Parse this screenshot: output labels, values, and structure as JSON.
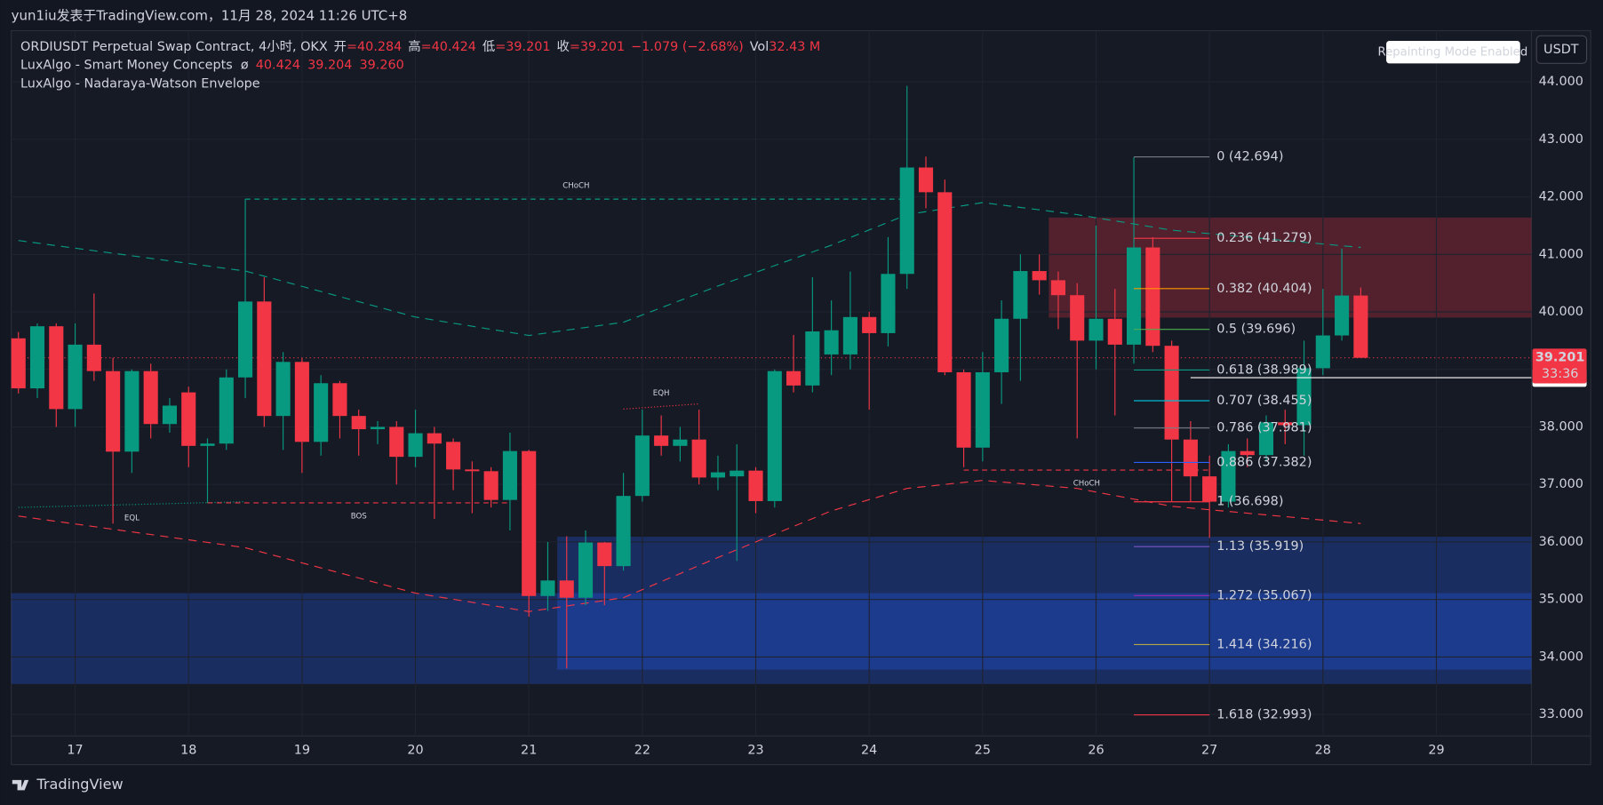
{
  "chart_data": {
    "type": "candlestick",
    "title": "yun1iu发表于TradingView.com，11月 28, 2024 11:26 UTC+8",
    "legend": {
      "symbol": "ORDIUSDT Perpetual Swap Contract, 4小时, OKX",
      "ohlc": [
        {
          "label": "开",
          "value": "=40.284"
        },
        {
          "label": "高",
          "value": "=40.424"
        },
        {
          "label": "低",
          "value": "=39.201"
        },
        {
          "label": "收",
          "value": "=39.201"
        }
      ],
      "change": "−1.079 (−2.68%)",
      "vol_label": "Vol",
      "vol_value": "32.43 M",
      "indicators": [
        {
          "name": "LuxAlgo - Smart Money Concepts",
          "symbol": "ø",
          "values": [
            "40.424",
            "39.204",
            "39.260"
          ]
        },
        {
          "name": "LuxAlgo - Nadaraya-Watson Envelope"
        }
      ]
    },
    "badge": "Repainting Mode Enabled",
    "currency": "USDT",
    "brand": "TradingView",
    "up_color": "#089981",
    "down_color": "#f23645",
    "categories": [
      null,
      null,
      null,
      "17",
      null,
      null,
      null,
      null,
      null,
      "18",
      null,
      null,
      null,
      null,
      null,
      "19",
      null,
      null,
      null,
      null,
      null,
      "20",
      null,
      null,
      null,
      null,
      null,
      "21",
      null,
      null,
      null,
      null,
      null,
      "22",
      null,
      null,
      null,
      null,
      null,
      "23",
      null,
      null,
      null,
      null,
      null,
      "24",
      null,
      null,
      null,
      null,
      null,
      "25",
      null,
      null,
      null,
      null,
      null,
      "26",
      null,
      null,
      null,
      null,
      null,
      "27",
      null,
      null,
      null,
      null,
      null,
      "28",
      null,
      null,
      null,
      null,
      null,
      "29",
      null,
      null,
      null,
      null
    ],
    "open": [
      39.54,
      38.67,
      39.75,
      38.31,
      39.43,
      38.97,
      37.57,
      38.97,
      38.05,
      38.6,
      37.67,
      37.71,
      38.86,
      40.18,
      38.19,
      39.13,
      37.74,
      38.76,
      38.19,
      37.96,
      38.0,
      37.48,
      37.89,
      37.74,
      37.26,
      37.23,
      36.73,
      37.58,
      35.06,
      35.33,
      35.03,
      35.99,
      35.58,
      36.8,
      37.85,
      37.67,
      37.78,
      37.12,
      37.14,
      37.24,
      36.71,
      38.97,
      38.72,
      39.26,
      39.26,
      39.91,
      39.63,
      40.66,
      42.51,
      42.08,
      38.95,
      37.64,
      38.95,
      39.88,
      40.71,
      40.55,
      40.29,
      39.5,
      39.88,
      39.43,
      41.12,
      39.41,
      37.78,
      37.14,
      36.7,
      37.58,
      37.51,
      38.08,
      38.03,
      39.02,
      39.59,
      40.284,
      null,
      null,
      null,
      null,
      null,
      null,
      null,
      null
    ],
    "high": [
      39.65,
      39.8,
      39.8,
      39.8,
      40.32,
      39.2,
      39.0,
      39.1,
      38.5,
      38.7,
      37.8,
      39.0,
      41.96,
      40.6,
      39.3,
      39.2,
      38.9,
      38.8,
      38.3,
      38.1,
      38.1,
      38.3,
      38.0,
      37.8,
      37.4,
      37.3,
      37.9,
      37.6,
      36.0,
      36.1,
      36.2,
      36.0,
      37.2,
      38.3,
      38.2,
      38.0,
      38.3,
      37.5,
      37.7,
      37.3,
      39.0,
      39.6,
      40.6,
      40.2,
      40.7,
      40.0,
      41.3,
      43.93,
      42.7,
      42.3,
      39.0,
      39.3,
      40.2,
      41.0,
      41.0,
      40.7,
      40.5,
      41.5,
      40.4,
      42.69,
      41.3,
      39.5,
      38.1,
      37.5,
      37.7,
      37.8,
      38.2,
      38.3,
      39.5,
      40.4,
      41.1,
      40.424,
      null,
      null,
      null,
      null,
      null,
      null,
      null,
      null
    ],
    "low": [
      38.58,
      38.5,
      38.0,
      38.0,
      38.8,
      36.32,
      37.2,
      37.8,
      37.9,
      37.3,
      36.68,
      37.6,
      38.5,
      38.0,
      37.6,
      37.2,
      37.5,
      37.8,
      37.5,
      37.7,
      37.0,
      37.3,
      36.4,
      36.9,
      36.5,
      36.6,
      36.2,
      34.7,
      34.8,
      33.8,
      34.9,
      34.9,
      35.5,
      36.7,
      37.5,
      37.4,
      37.0,
      36.9,
      35.67,
      36.5,
      36.6,
      38.6,
      38.6,
      38.9,
      39.0,
      38.3,
      39.4,
      40.4,
      41.8,
      38.9,
      37.3,
      37.4,
      38.4,
      38.8,
      40.3,
      39.7,
      37.8,
      39.0,
      38.2,
      39.1,
      39.3,
      36.7,
      36.7,
      36.07,
      36.6,
      37.3,
      37.4,
      37.7,
      37.5,
      38.9,
      39.5,
      39.201,
      null,
      null,
      null,
      null,
      null,
      null,
      null,
      null
    ],
    "close": [
      38.67,
      39.75,
      38.31,
      39.43,
      38.97,
      37.57,
      38.97,
      38.05,
      38.37,
      37.67,
      37.71,
      38.86,
      40.18,
      38.19,
      39.13,
      37.74,
      38.76,
      38.19,
      37.96,
      38.0,
      37.48,
      37.89,
      37.71,
      37.26,
      37.23,
      36.73,
      37.58,
      35.06,
      35.33,
      35.03,
      35.99,
      35.58,
      36.8,
      37.85,
      37.67,
      37.78,
      37.12,
      37.21,
      37.24,
      36.71,
      38.97,
      38.72,
      39.66,
      39.68,
      39.91,
      39.63,
      40.66,
      42.51,
      42.08,
      38.95,
      37.64,
      38.95,
      39.88,
      40.71,
      40.55,
      40.29,
      39.5,
      39.88,
      39.43,
      41.12,
      39.41,
      37.78,
      37.14,
      36.7,
      37.58,
      37.51,
      38.08,
      38.03,
      39.02,
      39.59,
      40.284,
      39.201,
      null,
      null,
      null,
      null,
      null,
      null,
      null,
      null
    ],
    "ylim": [
      32.626,
      44.889
    ],
    "yticks": [
      {
        "value": 33,
        "label": "33.000"
      },
      {
        "value": 34,
        "label": "34.000"
      },
      {
        "value": 35,
        "label": "35.000"
      },
      {
        "value": 36,
        "label": "36.000"
      },
      {
        "value": 37,
        "label": "37.000"
      },
      {
        "value": 38,
        "label": "38.000"
      },
      {
        "value": 39,
        "label": "39.000"
      },
      {
        "value": 40,
        "label": "40.000"
      },
      {
        "value": 41,
        "label": "41.000"
      },
      {
        "value": 42,
        "label": "42.000"
      },
      {
        "value": 43,
        "label": "43.000"
      },
      {
        "value": 44,
        "label": "44.000"
      }
    ],
    "grid": true,
    "zones": [
      {
        "from": 55,
        "top": 41.64,
        "bottom": 39.9,
        "color": "rgba(242,54,69,0.28)"
      },
      {
        "from": 29,
        "top": 36.09,
        "bottom": 33.78,
        "color": "rgba(41,98,255,0.28)"
      },
      {
        "from": 0,
        "top": 35.11,
        "bottom": 33.53,
        "color": "rgba(41,98,255,0.28)"
      }
    ],
    "envelope": [
      {
        "color": "#089981",
        "x": [
          0,
          12,
          21,
          27,
          32,
          37,
          43,
          47,
          51,
          56,
          61,
          71
        ],
        "values": [
          41.24,
          40.71,
          39.91,
          39.59,
          39.82,
          40.45,
          41.16,
          41.69,
          41.9,
          41.69,
          41.42,
          41.12
        ]
      },
      {
        "color": "#f23645",
        "x": [
          0,
          12,
          21,
          27,
          32,
          37,
          43,
          47,
          51,
          56,
          61,
          71
        ],
        "values": [
          36.45,
          35.9,
          35.11,
          34.79,
          35.03,
          35.73,
          36.54,
          36.93,
          37.07,
          36.93,
          36.62,
          36.32
        ]
      }
    ],
    "structures": [
      {
        "label": "CHoCH",
        "color": "#089981",
        "from": 12,
        "to": 47,
        "values": [
          41.96,
          41.96
        ],
        "dash": "5 4",
        "label_side": "above"
      },
      {
        "label": "EQL",
        "color": "#089981",
        "from": 0,
        "to": 12,
        "values": [
          36.6,
          36.7
        ],
        "dash": "1 2",
        "label_side": "below"
      },
      {
        "label": "BOS",
        "color": "#f23645",
        "from": 10,
        "to": 26,
        "values": [
          36.68,
          36.68
        ],
        "dash": "5 4",
        "label_side": "below"
      },
      {
        "label": "EQH",
        "color": "#f23645",
        "from": 32,
        "to": 36,
        "values": [
          38.31,
          38.4
        ],
        "dash": "1 2",
        "label_side": "above"
      },
      {
        "label": "CHoCH",
        "color": "#f23645",
        "from": 50,
        "to": 63,
        "values": [
          37.25,
          37.25
        ],
        "dash": "5 4",
        "label_side": "below"
      }
    ],
    "fib": {
      "from": 59,
      "to": 63,
      "levels": [
        {
          "value": 42.694,
          "label": "0 (42.694)",
          "color": "#787b86"
        },
        {
          "value": 41.279,
          "label": "0.236 (41.279)",
          "color": "#f23645"
        },
        {
          "value": 40.404,
          "label": "0.382 (40.404)",
          "color": "#ff9800"
        },
        {
          "value": 39.696,
          "label": "0.5 (39.696)",
          "color": "#4caf50"
        },
        {
          "value": 38.989,
          "label": "0.618 (38.989)",
          "color": "#089981"
        },
        {
          "value": 38.455,
          "label": "0.707 (38.455)",
          "color": "#00bcd4"
        },
        {
          "value": 37.981,
          "label": "0.786 (37.981)",
          "color": "#787b86"
        },
        {
          "value": 37.382,
          "label": "0.886 (37.382)",
          "color": "#2962ff"
        },
        {
          "value": 36.698,
          "label": "1 (36.698)",
          "color": "#f23645"
        },
        {
          "value": 35.919,
          "label": "1.13 (35.919)",
          "color": "#7e57c2"
        },
        {
          "value": 35.067,
          "label": "1.272 (35.067)",
          "color": "#9c27b0"
        },
        {
          "value": 34.216,
          "label": "1.414 (34.216)",
          "color": "#b5a642"
        },
        {
          "value": 32.993,
          "label": "1.618 (32.993)",
          "color": "#f23645"
        }
      ]
    },
    "last_price": {
      "value": 39.201,
      "label": "39.201",
      "countdown": "33:36",
      "color": "#f23645"
    },
    "line_price": {
      "value": 38.856,
      "label": "38.856",
      "from": 62
    }
  }
}
